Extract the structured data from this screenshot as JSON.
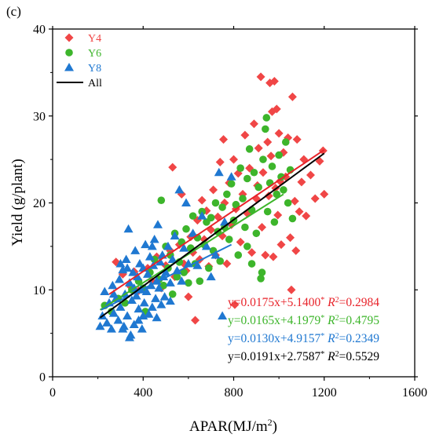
{
  "panel_label": "(c)",
  "chart_data": {
    "type": "scatter",
    "xlabel": "APAR(MJ/m²)",
    "ylabel": "Yield (g/plant)",
    "xlim": [
      0,
      1600
    ],
    "ylim": [
      0,
      40
    ],
    "xticks": [
      0,
      400,
      800,
      1200,
      1600
    ],
    "yticks": [
      0,
      10,
      20,
      30,
      40
    ],
    "grid": false,
    "legend_position": "top-left",
    "series": [
      {
        "name": "Y4",
        "marker": "diamond",
        "color": "#f04646",
        "line": {
          "x": [
            250,
            1200
          ],
          "y": [
            9.5,
            26.1
          ],
          "color": "#e8232a"
        },
        "equation": {
          "text": "y=0.0175x+5.1400",
          "sup": "*",
          "r2": "=0.2984"
        },
        "points": [
          [
            280,
            13.2
          ],
          [
            310,
            11.8
          ],
          [
            340,
            10.5
          ],
          [
            360,
            12.1
          ],
          [
            380,
            9.9
          ],
          [
            420,
            12.5
          ],
          [
            440,
            11.0
          ],
          [
            460,
            13.8
          ],
          [
            480,
            10.2
          ],
          [
            500,
            12.8
          ],
          [
            520,
            14.5
          ],
          [
            530,
            24.1
          ],
          [
            540,
            11.5
          ],
          [
            560,
            15.2
          ],
          [
            570,
            21.0
          ],
          [
            580,
            13.0
          ],
          [
            590,
            12.2
          ],
          [
            600,
            9.2
          ],
          [
            610,
            16.1
          ],
          [
            620,
            14.3
          ],
          [
            630,
            6.5
          ],
          [
            640,
            18.0
          ],
          [
            650,
            13.5
          ],
          [
            660,
            20.3
          ],
          [
            670,
            15.8
          ],
          [
            680,
            19.1
          ],
          [
            690,
            12.7
          ],
          [
            700,
            16.9
          ],
          [
            710,
            21.5
          ],
          [
            720,
            14.0
          ],
          [
            730,
            18.4
          ],
          [
            740,
            24.7
          ],
          [
            750,
            16.2
          ],
          [
            755,
            27.3
          ],
          [
            760,
            20.0
          ],
          [
            770,
            13.0
          ],
          [
            780,
            22.3
          ],
          [
            790,
            17.5
          ],
          [
            800,
            25.0
          ],
          [
            805,
            8.3
          ],
          [
            810,
            19.3
          ],
          [
            820,
            23.4
          ],
          [
            830,
            15.5
          ],
          [
            840,
            21.0
          ],
          [
            850,
            27.8
          ],
          [
            860,
            18.8
          ],
          [
            870,
            24.0
          ],
          [
            880,
            14.3
          ],
          [
            890,
            29.1
          ],
          [
            900,
            20.5
          ],
          [
            905,
            22.0
          ],
          [
            910,
            26.3
          ],
          [
            920,
            34.5
          ],
          [
            925,
            17.2
          ],
          [
            930,
            23.5
          ],
          [
            940,
            14.0
          ],
          [
            950,
            27.0
          ],
          [
            955,
            20.8
          ],
          [
            960,
            33.8
          ],
          [
            965,
            25.4
          ],
          [
            970,
            30.5
          ],
          [
            975,
            13.8
          ],
          [
            980,
            34.0
          ],
          [
            985,
            21.7
          ],
          [
            990,
            30.8
          ],
          [
            995,
            18.6
          ],
          [
            1000,
            28.0
          ],
          [
            1005,
            22.5
          ],
          [
            1010,
            15.2
          ],
          [
            1020,
            25.8
          ],
          [
            1030,
            23.0
          ],
          [
            1040,
            27.5
          ],
          [
            1050,
            16.0
          ],
          [
            1055,
            10.0
          ],
          [
            1060,
            32.2
          ],
          [
            1070,
            20.2
          ],
          [
            1075,
            14.5
          ],
          [
            1080,
            27.3
          ],
          [
            1090,
            19.0
          ],
          [
            1100,
            22.4
          ],
          [
            1110,
            25.0
          ],
          [
            1120,
            18.5
          ],
          [
            1140,
            23.2
          ],
          [
            1160,
            20.5
          ],
          [
            1180,
            24.8
          ],
          [
            1195,
            26.0
          ],
          [
            1200,
            21.0
          ]
        ]
      },
      {
        "name": "Y6",
        "marker": "circle",
        "color": "#3db52b",
        "line": {
          "x": [
            210,
            1020
          ],
          "y": [
            7.7,
            21.0
          ],
          "color": "#3db52b"
        },
        "equation": {
          "text": "y=0.0165x+4.1979",
          "sup": "*",
          "r2": "=0.4795"
        },
        "points": [
          [
            230,
            8.2
          ],
          [
            260,
            7.5
          ],
          [
            290,
            9.0
          ],
          [
            320,
            8.5
          ],
          [
            350,
            10.0
          ],
          [
            380,
            11.0
          ],
          [
            400,
            10.2
          ],
          [
            410,
            7.5
          ],
          [
            430,
            12.0
          ],
          [
            450,
            13.5
          ],
          [
            470,
            11.2
          ],
          [
            480,
            20.3
          ],
          [
            490,
            10.5
          ],
          [
            500,
            15.0
          ],
          [
            510,
            12.5
          ],
          [
            520,
            14.0
          ],
          [
            530,
            9.5
          ],
          [
            540,
            16.5
          ],
          [
            550,
            11.5
          ],
          [
            560,
            13.2
          ],
          [
            570,
            15.5
          ],
          [
            580,
            12.0
          ],
          [
            590,
            17.0
          ],
          [
            600,
            10.8
          ],
          [
            610,
            14.8
          ],
          [
            620,
            18.5
          ],
          [
            630,
            13.0
          ],
          [
            640,
            16.0
          ],
          [
            650,
            11.0
          ],
          [
            660,
            19.0
          ],
          [
            670,
            15.2
          ],
          [
            680,
            17.8
          ],
          [
            690,
            12.5
          ],
          [
            700,
            18.3
          ],
          [
            710,
            14.5
          ],
          [
            720,
            20.0
          ],
          [
            730,
            16.7
          ],
          [
            740,
            13.3
          ],
          [
            750,
            19.5
          ],
          [
            760,
            17.2
          ],
          [
            770,
            21.0
          ],
          [
            780,
            15.8
          ],
          [
            790,
            22.2
          ],
          [
            800,
            18.0
          ],
          [
            810,
            19.8
          ],
          [
            820,
            14.0
          ],
          [
            830,
            24.0
          ],
          [
            840,
            20.5
          ],
          [
            850,
            17.2
          ],
          [
            860,
            22.8
          ],
          [
            870,
            26.2
          ],
          [
            880,
            19.2
          ],
          [
            890,
            23.5
          ],
          [
            900,
            16.5
          ],
          [
            910,
            21.8
          ],
          [
            920,
            11.3
          ],
          [
            930,
            25.0
          ],
          [
            940,
            28.5
          ],
          [
            945,
            29.8
          ],
          [
            950,
            19.0
          ],
          [
            960,
            22.3
          ],
          [
            970,
            24.2
          ],
          [
            980,
            17.8
          ],
          [
            990,
            21.0
          ],
          [
            1000,
            25.5
          ],
          [
            1010,
            23.0
          ],
          [
            1020,
            21.5
          ],
          [
            1030,
            27.0
          ],
          [
            1040,
            20.0
          ],
          [
            1050,
            23.8
          ],
          [
            925,
            12.0
          ],
          [
            880,
            13.0
          ],
          [
            860,
            15.0
          ],
          [
            1060,
            18.2
          ]
        ]
      },
      {
        "name": "Y8",
        "marker": "triangle",
        "color": "#1f78d1",
        "line": {
          "x": [
            215,
            790
          ],
          "y": [
            7.7,
            15.2
          ],
          "color": "#1f78d1"
        },
        "equation": {
          "text": "y=0.0130x+4.9157",
          "sup": "*",
          "r2": "=0.2349"
        },
        "points": [
          [
            210,
            5.8
          ],
          [
            220,
            7.0
          ],
          [
            230,
            9.8
          ],
          [
            240,
            6.2
          ],
          [
            250,
            8.5
          ],
          [
            260,
            5.5
          ],
          [
            265,
            10.5
          ],
          [
            270,
            7.3
          ],
          [
            280,
            9.0
          ],
          [
            290,
            6.5
          ],
          [
            295,
            11.2
          ],
          [
            300,
            8.0
          ],
          [
            310,
            12.3
          ],
          [
            315,
            5.8
          ],
          [
            320,
            9.5
          ],
          [
            325,
            13.5
          ],
          [
            330,
            7.0
          ],
          [
            335,
            17.0
          ],
          [
            340,
            10.8
          ],
          [
            345,
            4.8
          ],
          [
            350,
            8.8
          ],
          [
            355,
            12.0
          ],
          [
            360,
            6.0
          ],
          [
            365,
            14.5
          ],
          [
            370,
            9.3
          ],
          [
            375,
            11.5
          ],
          [
            380,
            7.8
          ],
          [
            385,
            13.0
          ],
          [
            390,
            10.0
          ],
          [
            395,
            5.5
          ],
          [
            400,
            12.5
          ],
          [
            405,
            8.5
          ],
          [
            410,
            15.2
          ],
          [
            415,
            9.8
          ],
          [
            420,
            11.8
          ],
          [
            425,
            7.2
          ],
          [
            430,
            13.8
          ],
          [
            435,
            10.5
          ],
          [
            440,
            8.0
          ],
          [
            445,
            12.8
          ],
          [
            450,
            15.8
          ],
          [
            455,
            9.0
          ],
          [
            460,
            11.0
          ],
          [
            465,
            17.5
          ],
          [
            470,
            10.2
          ],
          [
            475,
            13.2
          ],
          [
            480,
            8.3
          ],
          [
            485,
            14.0
          ],
          [
            490,
            11.5
          ],
          [
            495,
            9.2
          ],
          [
            500,
            12.0
          ],
          [
            510,
            15.0
          ],
          [
            520,
            10.8
          ],
          [
            530,
            13.5
          ],
          [
            540,
            16.2
          ],
          [
            550,
            12.2
          ],
          [
            560,
            21.5
          ],
          [
            570,
            11.0
          ],
          [
            580,
            14.8
          ],
          [
            590,
            20.0
          ],
          [
            600,
            13.0
          ],
          [
            620,
            16.5
          ],
          [
            640,
            12.8
          ],
          [
            660,
            18.5
          ],
          [
            680,
            15.0
          ],
          [
            700,
            11.5
          ],
          [
            720,
            14.0
          ],
          [
            735,
            23.5
          ],
          [
            750,
            7.0
          ],
          [
            760,
            17.8
          ],
          [
            790,
            23.0
          ],
          [
            330,
            12.5
          ],
          [
            360,
            10.2
          ],
          [
            300,
            13.0
          ],
          [
            440,
            15.0
          ],
          [
            520,
            8.7
          ],
          [
            270,
            9.5
          ],
          [
            400,
            7.0
          ],
          [
            340,
            4.5
          ],
          [
            380,
            6.5
          ],
          [
            310,
            5.5
          ],
          [
            460,
            6.8
          ]
        ]
      },
      {
        "name": "All",
        "marker": "none",
        "color": "#000000",
        "line": {
          "x": [
            210,
            1200
          ],
          "y": [
            6.8,
            25.7
          ],
          "color": "#000000"
        },
        "equation": {
          "text": "y=0.0191x+2.7587",
          "sup": "*",
          "r2": "=0.5529"
        }
      }
    ]
  }
}
